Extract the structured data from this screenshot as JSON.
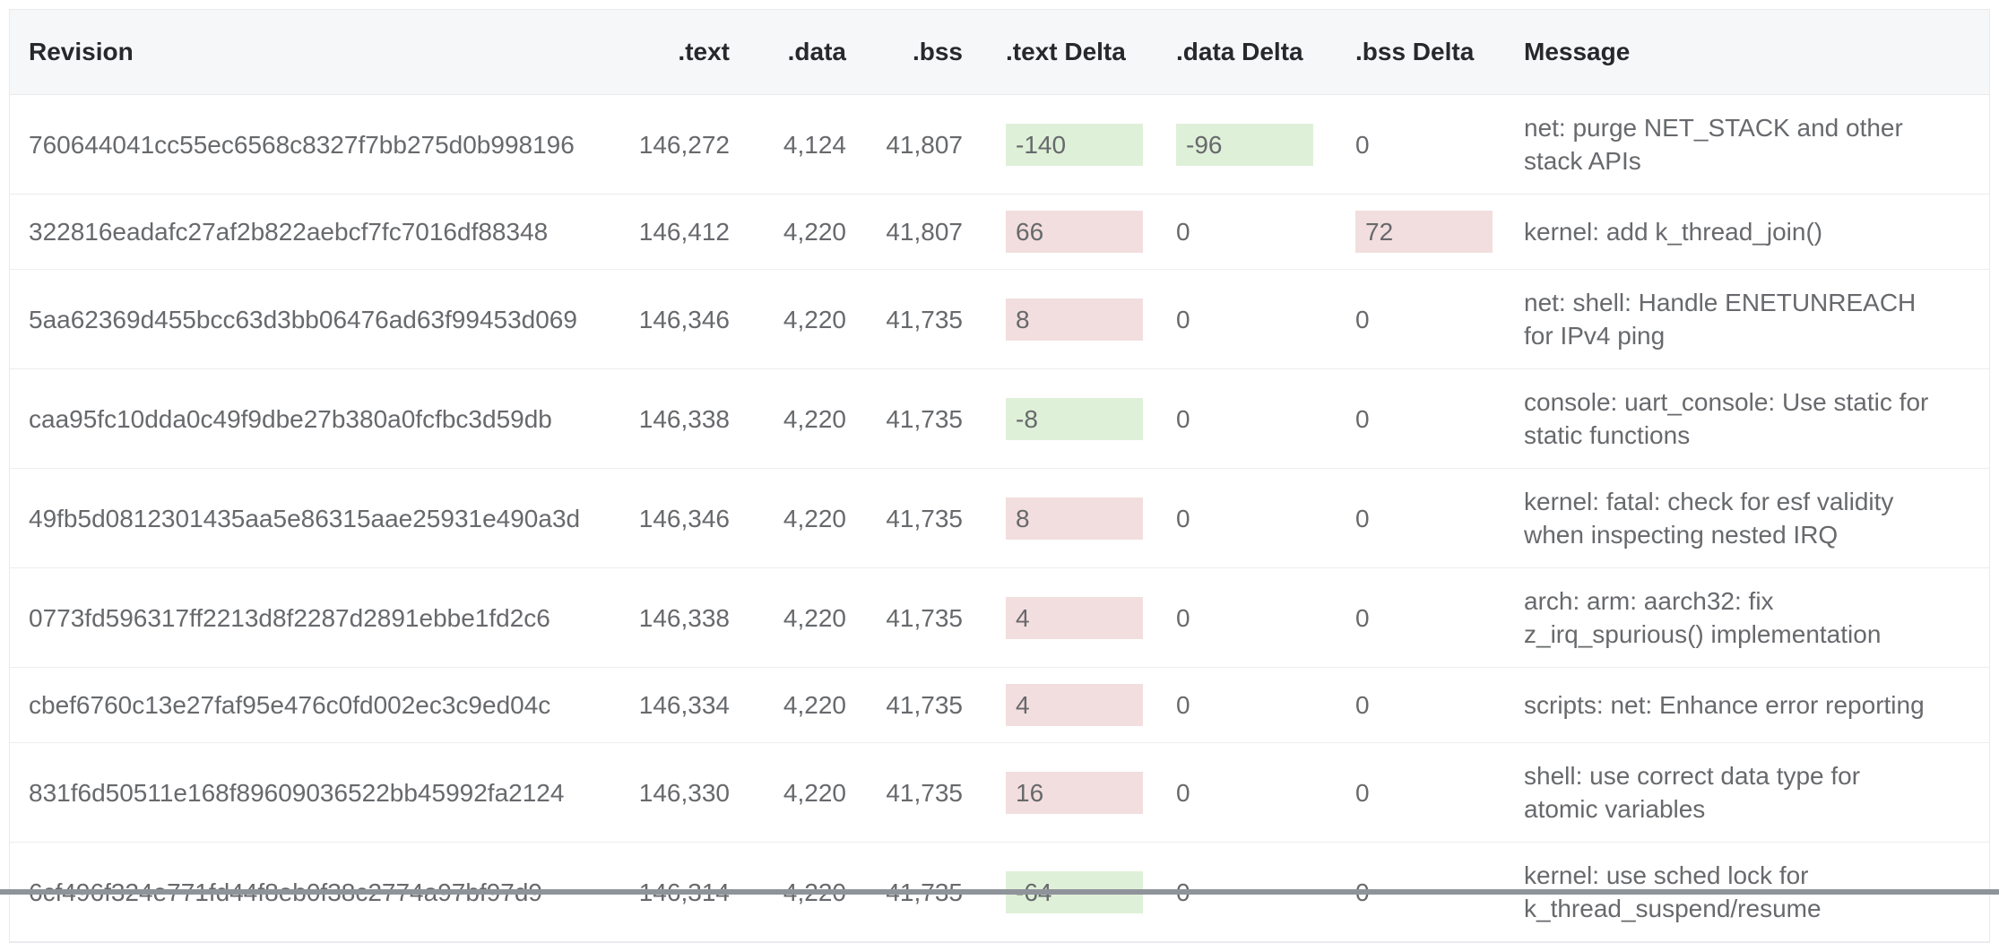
{
  "colors": {
    "delta_increase_bg": "#f2dede",
    "delta_decrease_bg": "#dff0d8",
    "header_bg": "#f6f7f9",
    "row_border": "#ededef",
    "cell_text": "#67696c",
    "header_text": "#26282b"
  },
  "table": {
    "columns": [
      {
        "label": "Revision"
      },
      {
        "label": ".text"
      },
      {
        "label": ".data"
      },
      {
        "label": ".bss"
      },
      {
        "label": ".text Delta"
      },
      {
        "label": ".data Delta"
      },
      {
        "label": ".bss Delta"
      },
      {
        "label": "Message"
      }
    ],
    "rows": [
      {
        "revision": "760644041cc55ec6568c8327f7bb275d0b998196",
        "text": "146,272",
        "data": "4,124",
        "bss": "41,807",
        "text_delta": "-140",
        "data_delta": "-96",
        "bss_delta": "0",
        "message": "net: purge NET_STACK and other stack APIs"
      },
      {
        "revision": "322816eadafc27af2b822aebcf7fc7016df88348",
        "text": "146,412",
        "data": "4,220",
        "bss": "41,807",
        "text_delta": "66",
        "data_delta": "0",
        "bss_delta": "72",
        "message": "kernel: add k_thread_join()"
      },
      {
        "revision": "5aa62369d455bcc63d3bb06476ad63f99453d069",
        "text": "146,346",
        "data": "4,220",
        "bss": "41,735",
        "text_delta": "8",
        "data_delta": "0",
        "bss_delta": "0",
        "message": "net: shell: Handle ENETUNREACH for IPv4 ping"
      },
      {
        "revision": "caa95fc10dda0c49f9dbe27b380a0fcfbc3d59db",
        "text": "146,338",
        "data": "4,220",
        "bss": "41,735",
        "text_delta": "-8",
        "data_delta": "0",
        "bss_delta": "0",
        "message": "console: uart_console: Use static for static functions"
      },
      {
        "revision": "49fb5d0812301435aa5e86315aae25931e490a3d",
        "text": "146,346",
        "data": "4,220",
        "bss": "41,735",
        "text_delta": "8",
        "data_delta": "0",
        "bss_delta": "0",
        "message": "kernel: fatal: check for esf validity when inspecting nested IRQ"
      },
      {
        "revision": "0773fd596317ff2213d8f2287d2891ebbe1fd2c6",
        "text": "146,338",
        "data": "4,220",
        "bss": "41,735",
        "text_delta": "4",
        "data_delta": "0",
        "bss_delta": "0",
        "message": "arch: arm: aarch32: fix z_irq_spurious() implementation"
      },
      {
        "revision": "cbef6760c13e27faf95e476c0fd002ec3c9ed04c",
        "text": "146,334",
        "data": "4,220",
        "bss": "41,735",
        "text_delta": "4",
        "data_delta": "0",
        "bss_delta": "0",
        "message": "scripts: net: Enhance error reporting"
      },
      {
        "revision": "831f6d50511e168f89609036522bb45992fa2124",
        "text": "146,330",
        "data": "4,220",
        "bss": "41,735",
        "text_delta": "16",
        "data_delta": "0",
        "bss_delta": "0",
        "message": "shell: use correct data type for atomic variables"
      },
      {
        "revision": "6cf496f324e771fd44f8eb0f38c2774a97bf97d9",
        "text": "146,314",
        "data": "4,220",
        "bss": "41,735",
        "text_delta": "-64",
        "data_delta": "0",
        "bss_delta": "0",
        "message": "kernel: use sched lock for k_thread_suspend/resume"
      }
    ]
  }
}
